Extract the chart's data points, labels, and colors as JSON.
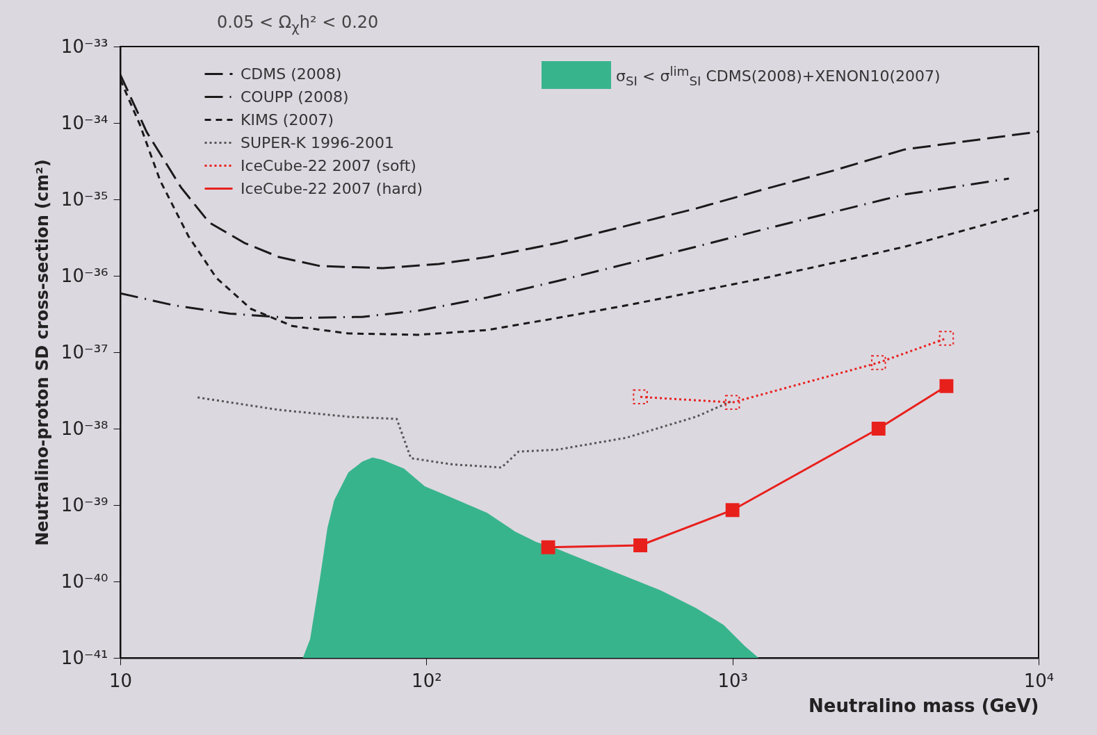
{
  "chart_data": {
    "type": "line",
    "title": "0.05 < Ω$_{χ}$h² < 0.20",
    "xlabel": "Neutralino mass (GeV)",
    "ylabel": "Neutralino-proton SD cross-section (cm²)",
    "log": "xy",
    "grid": false,
    "legend": "top",
    "xlim": [
      10,
      10000
    ],
    "xticks": [
      {
        "value": 10,
        "label": "10"
      },
      {
        "value": 100,
        "label": "10²"
      },
      {
        "value": 1000,
        "label": "10³"
      },
      {
        "value": 10000,
        "label": "10⁴"
      }
    ],
    "ylim": [
      1e-41,
      1e-33
    ],
    "yticks": [
      {
        "value": 1e-41,
        "label": "10⁻⁴¹"
      },
      {
        "value": 1e-40,
        "label": "10⁻⁴⁰"
      },
      {
        "value": 1e-39,
        "label": "10⁻³⁹"
      },
      {
        "value": 1e-38,
        "label": "10⁻³⁸"
      },
      {
        "value": 1e-37,
        "label": "10⁻³⁷"
      },
      {
        "value": 1e-36,
        "label": "10⁻³⁶"
      },
      {
        "value": 1e-35,
        "label": "10⁻³⁵"
      },
      {
        "value": 1e-34,
        "label": "10⁻³⁴"
      },
      {
        "value": 1e-33,
        "label": "10⁻³³"
      }
    ],
    "series": [
      {
        "name": "σ$_{SI}$ < σ$^{lim}$$_{SI}$ CDMS(2008)+XENON10(2007)",
        "type": "area",
        "color": "#38b48c",
        "x": [
          39.5,
          41.7,
          45,
          47.5,
          50,
          55.6,
          61.7,
          66.7,
          72,
          84.5,
          98.8,
          122,
          158,
          195,
          228,
          267,
          346,
          450,
          584,
          760,
          935,
          1097,
          1217
        ],
        "values": [
          1e-41,
          1.76e-41,
          1.16e-40,
          5e-40,
          1.16e-39,
          2.67e-39,
          3.7e-39,
          4.2e-39,
          3.9e-39,
          3e-39,
          1.76e-39,
          1.23e-39,
          7.9e-40,
          4.5e-40,
          3.3e-40,
          2.67e-40,
          1.76e-40,
          1.16e-40,
          7.6e-41,
          4.5e-41,
          2.7e-41,
          1.43e-41,
          1e-41
        ]
      },
      {
        "name": "CDMS (2008)",
        "color": "#1a1a1a",
        "line_style": "longdash",
        "marker": "none",
        "x": [
          10,
          12.2,
          15.8,
          19.5,
          25.4,
          33,
          45,
          72,
          110,
          158,
          267,
          450,
          760,
          1280,
          2160,
          3650,
          10000
        ],
        "values": [
          4.3e-34,
          7.6e-35,
          1.43e-35,
          5e-36,
          2.7e-36,
          1.76e-36,
          1.34e-36,
          1.26e-36,
          1.43e-36,
          1.76e-36,
          2.67e-36,
          4.5e-36,
          7.6e-36,
          1.37e-35,
          2.41e-35,
          4.5e-35,
          7.7e-35
        ]
      },
      {
        "name": "COUPP (2008)",
        "color": "#1a1a1a",
        "line_style": "dashdot",
        "marker": "none",
        "x": [
          10,
          15,
          22.8,
          36.5,
          61.6,
          94,
          158,
          267,
          450,
          760,
          1280,
          2160,
          3650,
          8000
        ],
        "values": [
          5.9e-37,
          4.1e-37,
          3.2e-37,
          2.8e-37,
          2.9e-37,
          3.5e-37,
          5.2e-37,
          8.5e-37,
          1.43e-36,
          2.4e-36,
          4.1e-36,
          6.9e-36,
          1.16e-35,
          1.87e-35
        ]
      },
      {
        "name": "KIMS (2007)",
        "color": "#1a1a1a",
        "line_style": "dashed",
        "marker": "none",
        "x": [
          10,
          11.6,
          13.5,
          16.7,
          20.6,
          26.7,
          36.5,
          55.6,
          94,
          158,
          267,
          450,
          760,
          1280,
          2160,
          3650,
          10000
        ],
        "values": [
          3.7e-34,
          9.4e-35,
          1.76e-35,
          3.3e-36,
          9.4e-37,
          3.7e-37,
          2.2e-37,
          1.76e-37,
          1.69e-37,
          1.95e-37,
          2.8e-37,
          4.1e-37,
          6.2e-37,
          9.4e-37,
          1.49e-36,
          2.4e-36,
          7.3e-36
        ]
      },
      {
        "name": "SUPER-K 1996-2001",
        "color": "#555555",
        "line_style": "dotted",
        "marker": "none",
        "x": [
          17.9,
          33,
          55.6,
          80,
          89,
          122,
          176,
          200,
          267,
          450,
          760,
          986
        ],
        "values": [
          2.56e-38,
          1.76e-38,
          1.43e-38,
          1.34e-38,
          4.1e-39,
          3.4e-39,
          3.1e-39,
          5e-39,
          5.3e-39,
          7.6e-39,
          1.43e-38,
          2.26e-38
        ]
      },
      {
        "name": "IceCube-22 2007 (soft)",
        "color": "#e8201c",
        "line_style": "dotted",
        "marker": "square",
        "x": [
          500,
          1000,
          3000,
          5000
        ],
        "values": [
          2.6e-38,
          2.2e-38,
          7.3e-38,
          1.52e-37
        ]
      },
      {
        "name": "IceCube-22 2007 (hard)",
        "color": "#e8201c",
        "line_style": "solid",
        "marker": "square",
        "x": [
          250,
          500,
          1000,
          3000,
          5000
        ],
        "values": [
          2.8e-40,
          2.97e-40,
          8.6e-40,
          1e-38,
          3.6e-38
        ]
      }
    ]
  }
}
